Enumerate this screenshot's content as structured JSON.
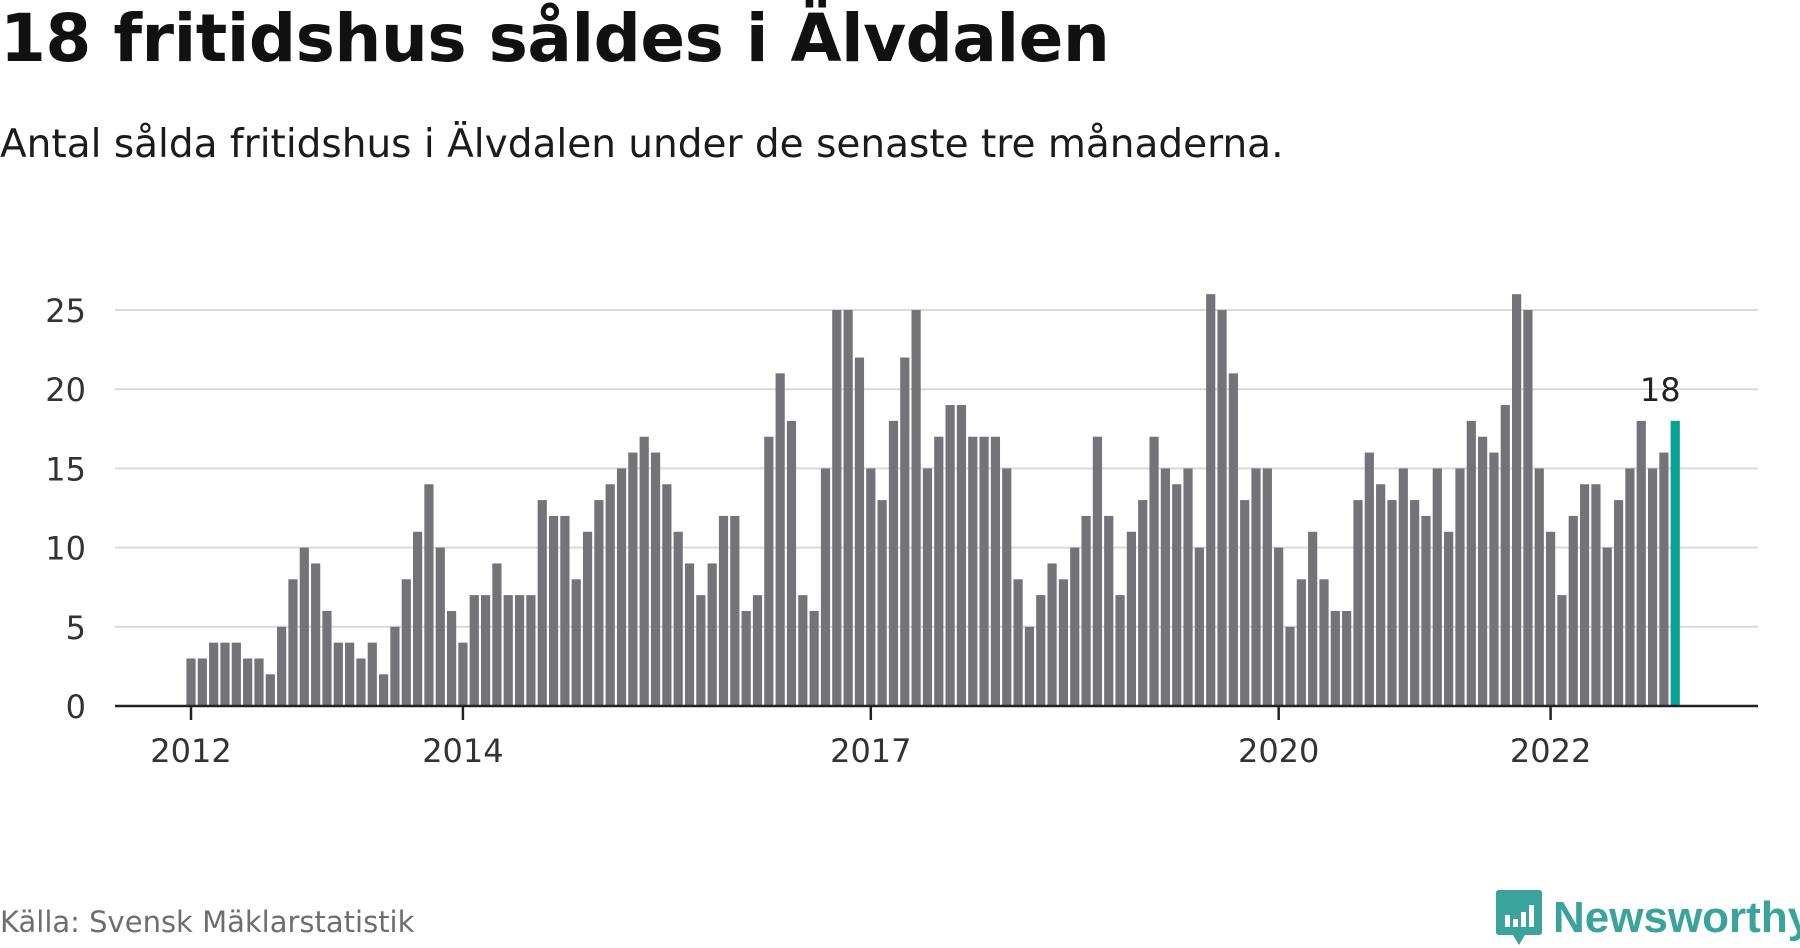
{
  "header": {
    "title": "18 fritidshus såldes i Älvdalen",
    "subtitle": "Antal sålda fritidshus i Älvdalen under de senaste tre månaderna."
  },
  "footer": {
    "source": "Källa: Svensk Mäklarstatistik",
    "brand": "Newsworthy",
    "brand_icon": "newsworthy-logo-icon"
  },
  "colors": {
    "bar": "#74737a",
    "highlight": "#0aa195",
    "grid": "#d9d9d9",
    "axis": "#222222",
    "brand": "#3aa39b"
  },
  "chart_data": {
    "type": "bar",
    "title": "18 fritidshus såldes i Älvdalen",
    "subtitle": "Antal sålda fritidshus i Älvdalen under de senaste tre månaderna.",
    "xlabel": "",
    "ylabel": "",
    "ylim": [
      0,
      25
    ],
    "yticks": [
      0,
      5,
      10,
      15,
      20,
      25
    ],
    "grid": true,
    "x_tick_labels": [
      {
        "label": "2012",
        "index": 0
      },
      {
        "label": "2014",
        "index": 24
      },
      {
        "label": "2017",
        "index": 60
      },
      {
        "label": "2020",
        "index": 96
      },
      {
        "label": "2022",
        "index": 120
      }
    ],
    "values": [
      3,
      3,
      4,
      4,
      4,
      3,
      3,
      2,
      5,
      8,
      10,
      9,
      6,
      4,
      4,
      3,
      4,
      2,
      5,
      8,
      11,
      14,
      10,
      6,
      4,
      7,
      7,
      9,
      7,
      7,
      7,
      13,
      12,
      12,
      8,
      11,
      13,
      14,
      15,
      16,
      17,
      16,
      14,
      11,
      9,
      7,
      9,
      12,
      12,
      6,
      7,
      17,
      21,
      18,
      7,
      6,
      15,
      25,
      25,
      22,
      15,
      13,
      18,
      22,
      25,
      15,
      17,
      19,
      19,
      17,
      17,
      17,
      15,
      8,
      5,
      7,
      9,
      8,
      10,
      12,
      17,
      12,
      7,
      11,
      13,
      17,
      15,
      14,
      15,
      10,
      26,
      25,
      21,
      13,
      15,
      15,
      10,
      5,
      8,
      11,
      8,
      6,
      6,
      13,
      16,
      14,
      13,
      15,
      13,
      12,
      15,
      11,
      15,
      18,
      17,
      16,
      19,
      26,
      25,
      15,
      11,
      7,
      12,
      14,
      14,
      10,
      13,
      15,
      18,
      15,
      16,
      18
    ],
    "highlight": {
      "index": 131,
      "value": 18,
      "label": "18"
    }
  }
}
